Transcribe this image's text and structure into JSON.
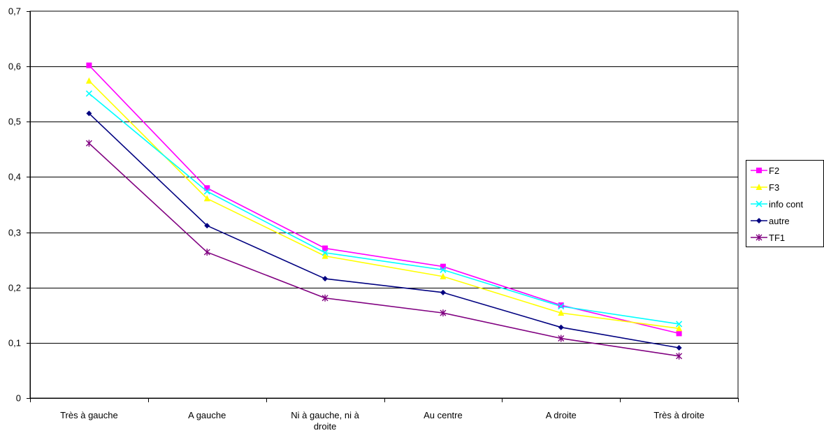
{
  "chart_data": {
    "type": "line",
    "title": "",
    "xlabel": "",
    "ylabel": "",
    "ylim": [
      0,
      0.7
    ],
    "yticks": [
      0,
      0.1,
      0.2,
      0.3,
      0.4,
      0.5,
      0.6,
      0.7
    ],
    "ytick_labels": [
      "0",
      "0,1",
      "0,2",
      "0,3",
      "0,4",
      "0,5",
      "0,6",
      "0,7"
    ],
    "categories": [
      [
        "Très à gauche"
      ],
      [
        "A gauche"
      ],
      [
        "Ni à gauche, ni à",
        "droite"
      ],
      [
        "Au centre"
      ],
      [
        "A droite"
      ],
      [
        "Très à droite"
      ]
    ],
    "grid": "horizontal",
    "legend_position": "right",
    "series": [
      {
        "name": "F2",
        "color": "#ff00ff",
        "marker": "square",
        "values": [
          0.602,
          0.38,
          0.271,
          0.238,
          0.168,
          0.117
        ]
      },
      {
        "name": "F3",
        "color": "#ffff00",
        "marker": "triangle",
        "values": [
          0.574,
          0.361,
          0.257,
          0.22,
          0.154,
          0.126
        ]
      },
      {
        "name": "info cont",
        "color": "#00ffff",
        "marker": "x",
        "values": [
          0.551,
          0.374,
          0.263,
          0.232,
          0.166,
          0.134
        ]
      },
      {
        "name": "autre",
        "color": "#000080",
        "marker": "diamond",
        "values": [
          0.515,
          0.312,
          0.216,
          0.191,
          0.128,
          0.091
        ]
      },
      {
        "name": "TF1",
        "color": "#800080",
        "marker": "star",
        "values": [
          0.461,
          0.264,
          0.181,
          0.154,
          0.108,
          0.076
        ]
      }
    ]
  }
}
